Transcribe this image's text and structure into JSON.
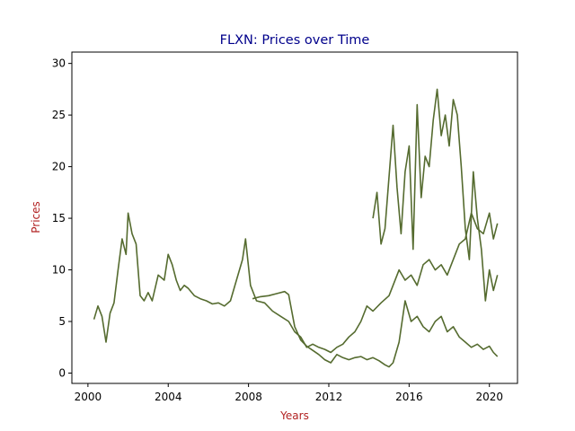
{
  "chart_data": {
    "type": "line",
    "title": "FLXN: Prices over Time",
    "xlabel": "Years",
    "ylabel": "Prices",
    "xlim": [
      1999.2,
      2021.4
    ],
    "ylim": [
      -1.0,
      31.1
    ],
    "x_ticks": [
      2000,
      2004,
      2008,
      2012,
      2016,
      2020
    ],
    "x_tick_labels": [
      "2000",
      "2004",
      "2008",
      "2012",
      "2016",
      "2020"
    ],
    "y_ticks": [
      0,
      5,
      10,
      15,
      20,
      25,
      30
    ],
    "y_tick_labels": [
      "0",
      "5",
      "10",
      "15",
      "20",
      "25",
      "30"
    ],
    "grid": false,
    "legend": "none",
    "colors": {
      "line": "#556b2f",
      "title": "#00008b",
      "axis_labels": "#b22222",
      "axes": "#000000"
    },
    "series": [
      {
        "x": [
          2000.3,
          2000.5,
          2000.7,
          2000.9,
          2001.1,
          2001.3,
          2001.5,
          2001.7,
          2001.9,
          2002.0,
          2002.2,
          2002.4,
          2002.6,
          2002.8,
          2003.0,
          2003.2,
          2003.5,
          2003.8,
          2004.0,
          2004.2,
          2004.4,
          2004.6,
          2004.8,
          2005.0,
          2005.3,
          2005.6,
          2005.9,
          2006.2,
          2006.5,
          2006.8,
          2007.1,
          2007.4,
          2007.7,
          2007.85,
          2008.1,
          2008.4,
          2008.8,
          2009.2,
          2009.6,
          2010.0,
          2010.3,
          2010.6,
          2010.9,
          2011.2,
          2011.5,
          2011.8,
          2012.1,
          2012.4,
          2012.7,
          2013.0,
          2013.3,
          2013.6,
          2013.9,
          2014.2,
          2014.6,
          2015.0,
          2015.2,
          2015.5,
          2015.8,
          2016.1,
          2016.4,
          2016.7,
          2017.0,
          2017.3,
          2017.6,
          2017.9,
          2018.2,
          2018.5,
          2018.8,
          2019.1,
          2019.4,
          2019.7,
          2020.0,
          2020.2,
          2020.4
        ],
        "values": [
          5.2,
          6.5,
          5.5,
          3.0,
          5.8,
          6.8,
          10.0,
          13.0,
          11.5,
          15.5,
          13.5,
          12.5,
          7.5,
          7.0,
          7.8,
          7.0,
          9.5,
          9.0,
          11.5,
          10.5,
          9.0,
          8.0,
          8.5,
          8.2,
          7.5,
          7.2,
          7.0,
          6.7,
          6.8,
          6.5,
          7.0,
          9.0,
          11.0,
          13.0,
          8.5,
          7.0,
          6.8,
          6.0,
          5.5,
          5.0,
          4.0,
          3.5,
          2.5,
          2.8,
          2.5,
          2.3,
          2.0,
          2.5,
          2.8,
          3.5,
          4.0,
          5.0,
          6.5,
          6.0,
          6.8,
          7.5,
          8.5,
          10.0,
          9.0,
          9.5,
          8.5,
          10.5,
          11.0,
          10.0,
          10.5,
          9.5,
          11.0,
          12.5,
          13.0,
          15.5,
          14.0,
          13.5,
          15.5,
          13.0,
          14.5
        ]
      },
      {
        "x": [
          2008.2,
          2008.6,
          2009.0,
          2009.4,
          2009.8,
          2010.0,
          2010.3,
          2010.6,
          2010.9,
          2011.2,
          2011.5,
          2011.8,
          2012.1,
          2012.4,
          2012.7,
          2013.0,
          2013.3,
          2013.6,
          2013.9,
          2014.2,
          2014.5,
          2014.8,
          2015.0,
          2015.2,
          2015.5,
          2015.8,
          2016.1,
          2016.4,
          2016.7,
          2017.0,
          2017.3,
          2017.6,
          2017.9,
          2018.2,
          2018.5,
          2018.8,
          2019.1,
          2019.4,
          2019.7,
          2020.0,
          2020.2,
          2020.4
        ],
        "values": [
          7.2,
          7.4,
          7.5,
          7.7,
          7.9,
          7.6,
          4.5,
          3.2,
          2.6,
          2.2,
          1.8,
          1.3,
          1.0,
          1.8,
          1.5,
          1.3,
          1.5,
          1.6,
          1.3,
          1.5,
          1.2,
          0.8,
          0.6,
          1.0,
          3.0,
          7.0,
          5.0,
          5.5,
          4.5,
          4.0,
          5.0,
          5.5,
          4.0,
          4.5,
          3.5,
          3.0,
          2.5,
          2.8,
          2.3,
          2.6,
          2.0,
          1.6
        ]
      },
      {
        "x": [
          2014.2,
          2014.4,
          2014.6,
          2014.8,
          2015.0,
          2015.2,
          2015.4,
          2015.6,
          2015.8,
          2016.0,
          2016.2,
          2016.4,
          2016.6,
          2016.8,
          2017.0,
          2017.2,
          2017.4,
          2017.6,
          2017.8,
          2018.0,
          2018.2,
          2018.4,
          2018.6,
          2018.8,
          2019.0,
          2019.2,
          2019.4,
          2019.6,
          2019.8,
          2020.0,
          2020.2,
          2020.4
        ],
        "values": [
          15.0,
          17.5,
          12.5,
          14.0,
          19.0,
          24.0,
          18.0,
          13.5,
          19.5,
          22.0,
          12.0,
          26.0,
          17.0,
          21.0,
          20.0,
          24.5,
          27.5,
          23.0,
          25.0,
          22.0,
          26.5,
          25.0,
          20.0,
          14.0,
          11.0,
          19.5,
          15.0,
          12.0,
          7.0,
          10.0,
          8.0,
          9.5
        ]
      }
    ]
  }
}
